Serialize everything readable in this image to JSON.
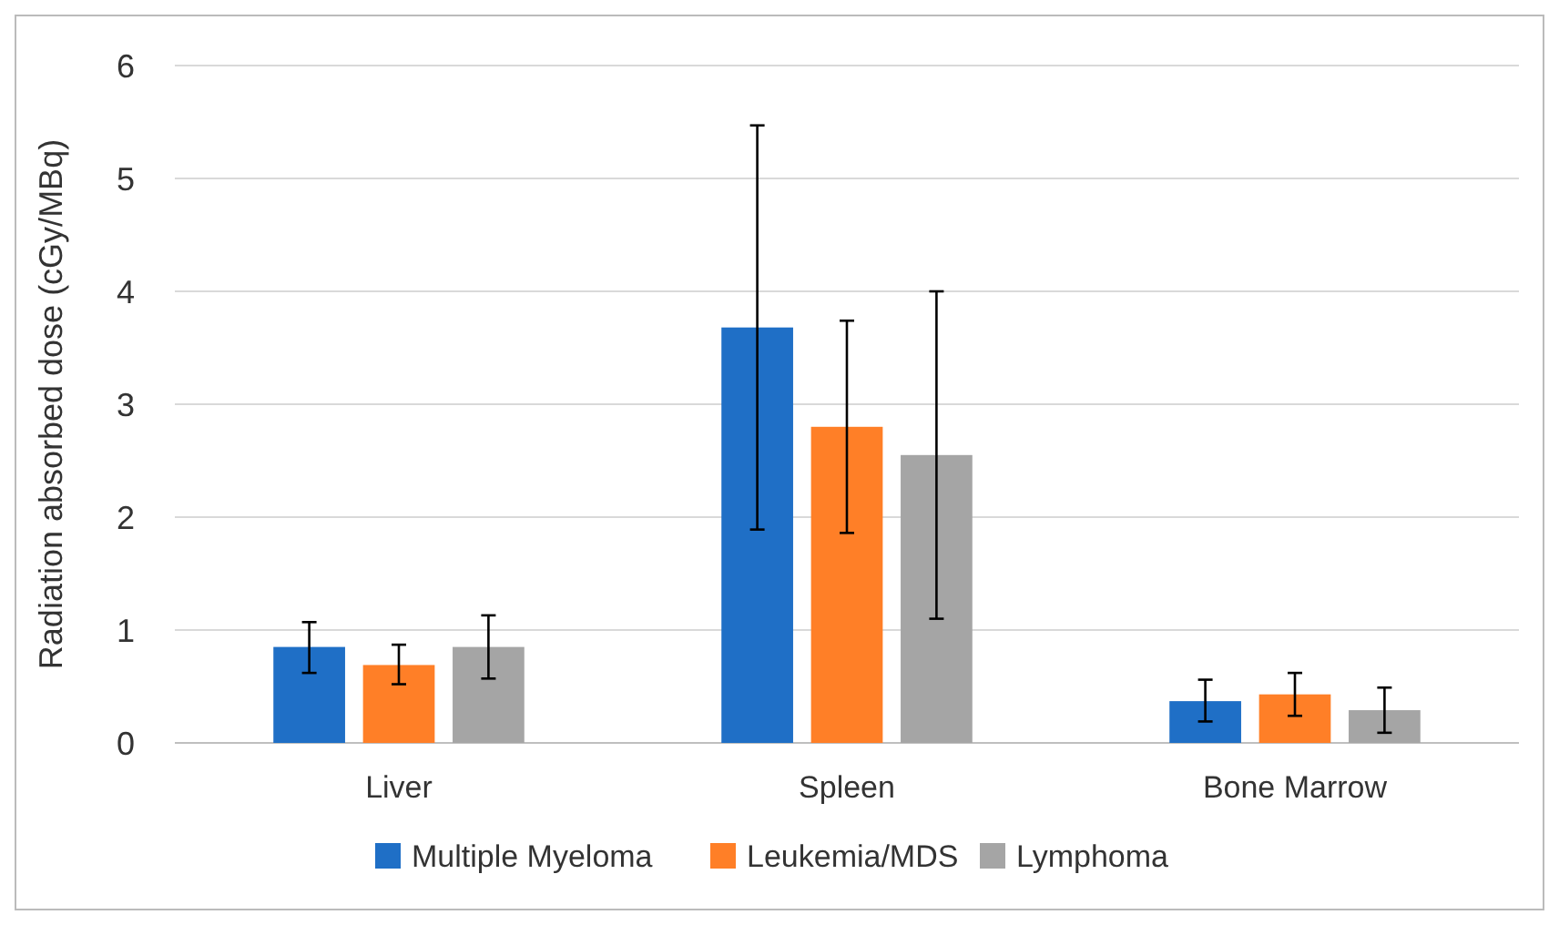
{
  "chart_data": {
    "type": "bar",
    "ylabel": "Radiation absorbed dose (cGy/MBq)",
    "categories": [
      "Liver",
      "Spleen",
      "Bone Marrow"
    ],
    "series": [
      {
        "name": "Multiple Myeloma",
        "color": "#1f6fc6",
        "values": [
          0.85,
          3.68,
          0.37
        ],
        "errors": [
          [
            0.62,
            1.07
          ],
          [
            1.89,
            5.47
          ],
          [
            0.19,
            0.56
          ]
        ]
      },
      {
        "name": "Leukemia/MDS",
        "color": "#ff7f27",
        "values": [
          0.69,
          2.8,
          0.43
        ],
        "errors": [
          [
            0.52,
            0.87
          ],
          [
            1.86,
            3.74
          ],
          [
            0.24,
            0.62
          ]
        ]
      },
      {
        "name": "Lymphoma",
        "color": "#a5a5a5",
        "values": [
          0.85,
          2.55,
          0.29
        ],
        "errors": [
          [
            0.57,
            1.13
          ],
          [
            1.1,
            4.0
          ],
          [
            0.09,
            0.49
          ]
        ]
      }
    ],
    "ylim": [
      0,
      6
    ],
    "yticks": [
      0,
      1,
      2,
      3,
      4,
      5,
      6
    ],
    "grid": "y",
    "legend": "bottom"
  }
}
